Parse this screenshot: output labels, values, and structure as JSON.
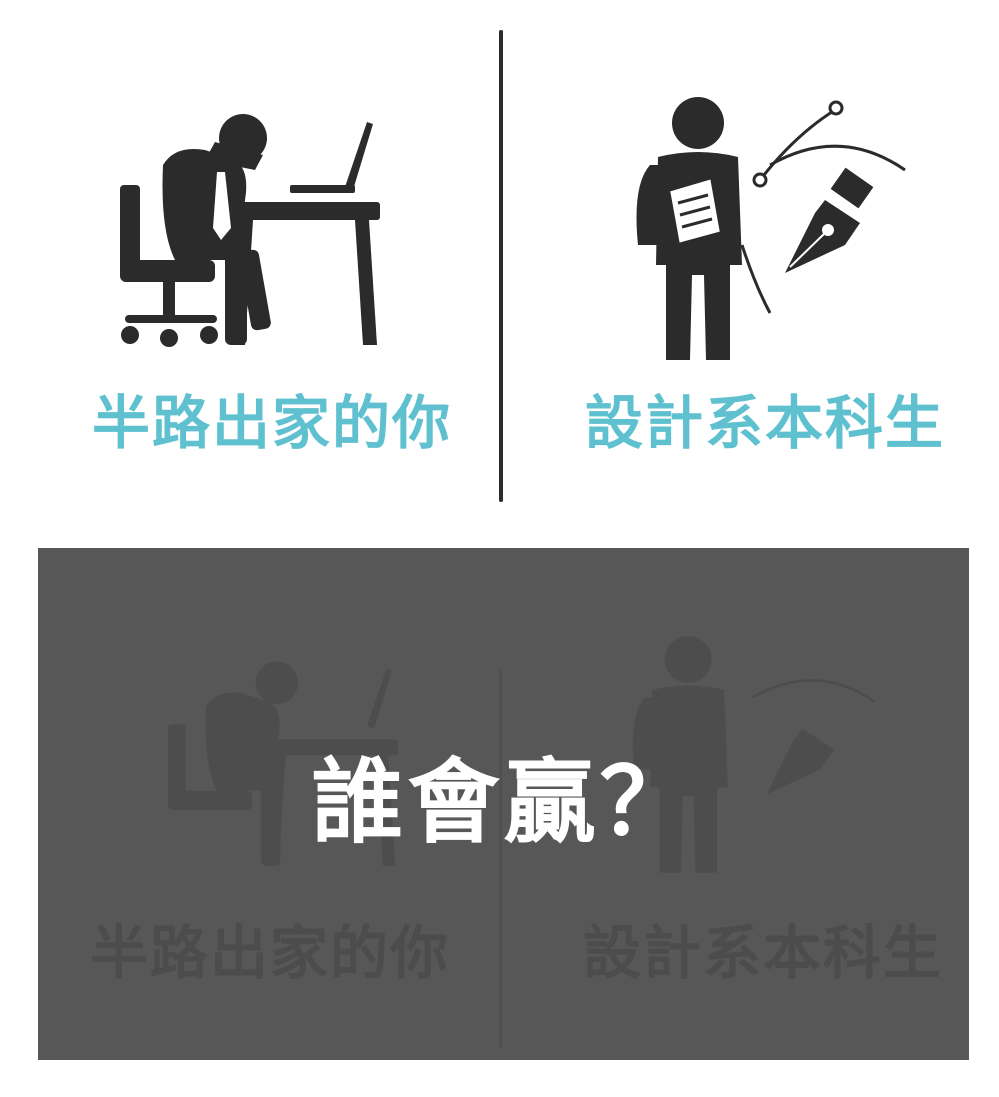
{
  "top": {
    "left_caption": "半路出家的你",
    "right_caption": "設計系本科生"
  },
  "panel": {
    "question": "誰會贏？",
    "ghost_left_caption": "半路出家的你",
    "ghost_right_caption": "設計系本科生"
  },
  "colors": {
    "caption_teal": "#5fc1cf",
    "icon_dark": "#2b2b2b",
    "panel_gray": "#575757"
  },
  "icons": {
    "left": "frustrated-office-worker-icon",
    "right": "design-student-pen-tool-icon"
  }
}
